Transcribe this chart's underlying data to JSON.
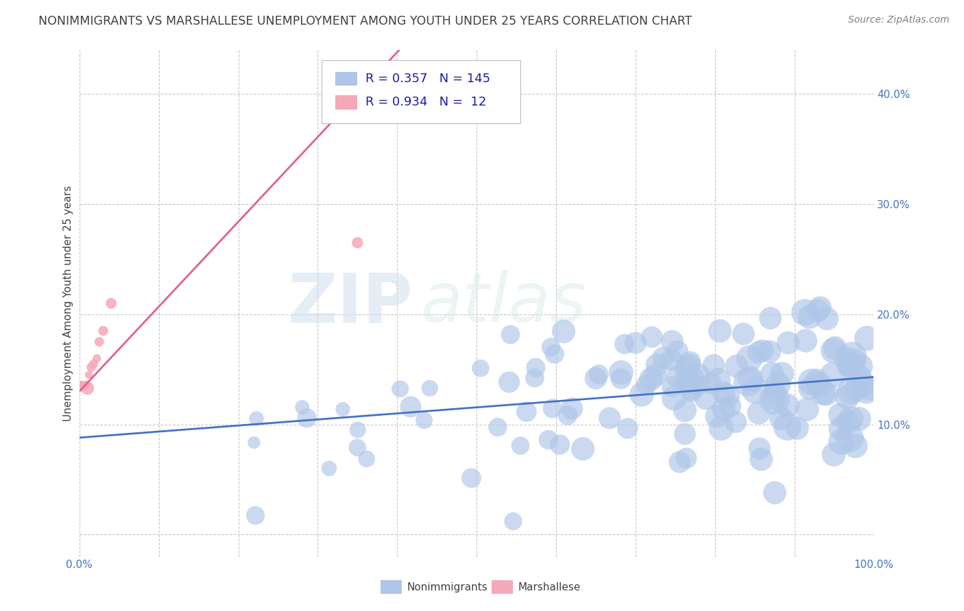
{
  "title": "NONIMMIGRANTS VS MARSHALLESE UNEMPLOYMENT AMONG YOUTH UNDER 25 YEARS CORRELATION CHART",
  "source": "Source: ZipAtlas.com",
  "ylabel": "Unemployment Among Youth under 25 years",
  "xlim": [
    0.0,
    1.0
  ],
  "ylim": [
    -0.02,
    0.44
  ],
  "x_ticks": [
    0.0,
    0.1,
    0.2,
    0.3,
    0.4,
    0.5,
    0.6,
    0.7,
    0.8,
    0.9,
    1.0
  ],
  "y_ticks": [
    0.0,
    0.1,
    0.2,
    0.3,
    0.4
  ],
  "y_tick_labels": [
    "",
    "10.0%",
    "20.0%",
    "30.0%",
    "40.0%"
  ],
  "x_tick_labels": [
    "0.0%",
    "",
    "",
    "",
    "",
    "",
    "",
    "",
    "",
    "",
    "100.0%"
  ],
  "nonimmigrants_R": 0.357,
  "nonimmigrants_N": 145,
  "marshallese_R": 0.934,
  "marshallese_N": 12,
  "nonimmigrants_color": "#aec6e8",
  "marshallese_color": "#f4a8b8",
  "nonimmigrants_line_color": "#4472c4",
  "marshallese_line_color": "#e06090",
  "watermark_zip": "ZIP",
  "watermark_atlas": "atlas",
  "background_color": "#ffffff",
  "grid_color": "#c8c8c8",
  "title_color": "#404040",
  "source_color": "#808080",
  "legend_text_color": "#1a1aaa",
  "seed": 7
}
